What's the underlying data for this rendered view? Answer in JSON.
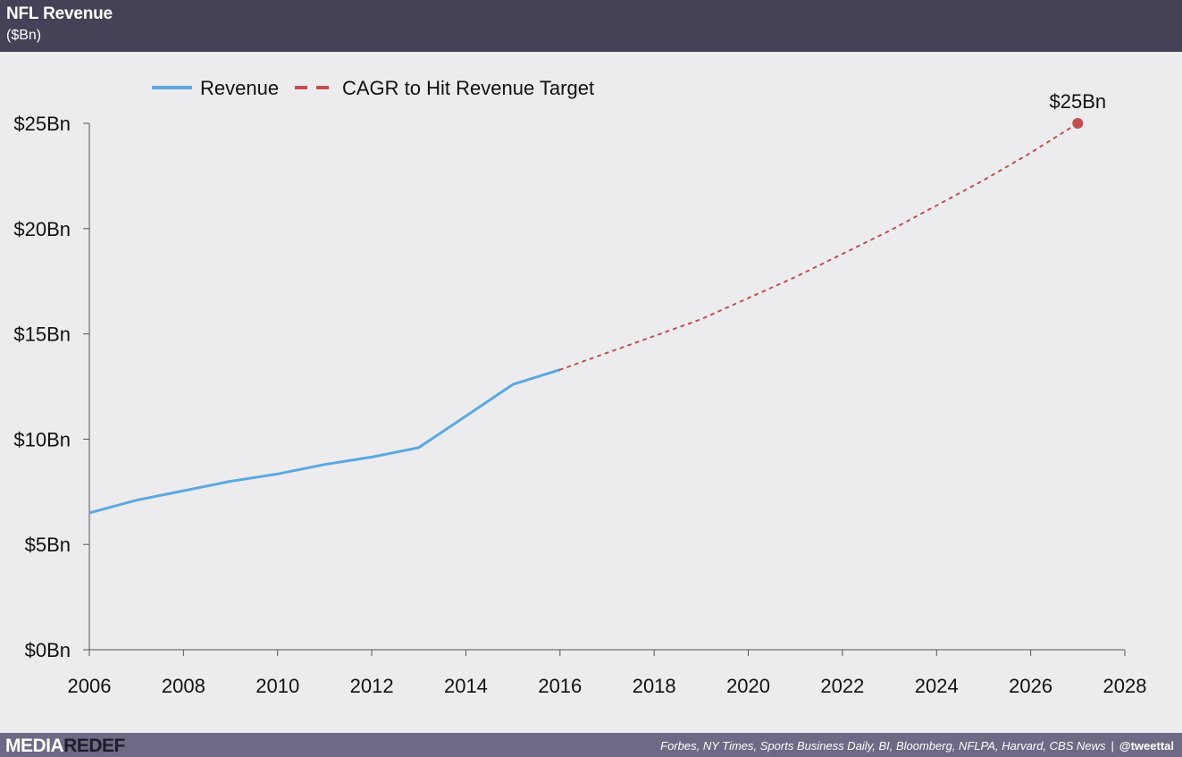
{
  "header": {
    "title": "NFL Revenue",
    "subtitle": "($Bn)"
  },
  "footer": {
    "brand_part1": "MEDIA",
    "brand_part2": "REDEF",
    "sources": "Forbes, NY Times, Sports Business Daily, BI, Bloomberg, NFLPA, Harvard, CBS News",
    "separator": "|",
    "handle": "@tweettal"
  },
  "colors": {
    "revenue": "#5aa8e0",
    "cagr": "#c0504d",
    "axis": "#555555",
    "text": "#111111"
  },
  "chart_data": {
    "type": "line",
    "title": "NFL Revenue",
    "subtitle": "($Bn)",
    "xlim": [
      2006,
      2028
    ],
    "ylim": [
      0,
      25
    ],
    "x_ticks": [
      "2006",
      "2008",
      "2010",
      "2012",
      "2014",
      "2016",
      "2018",
      "2020",
      "2022",
      "2024",
      "2026",
      "2028"
    ],
    "y_ticks": [
      "$0Bn",
      "$5Bn",
      "$10Bn",
      "$15Bn",
      "$20Bn",
      "$25Bn"
    ],
    "y_tick_values": [
      0,
      5,
      10,
      15,
      20,
      25
    ],
    "x_tick_values": [
      2006,
      2008,
      2010,
      2012,
      2014,
      2016,
      2018,
      2020,
      2022,
      2024,
      2026,
      2028
    ],
    "legend_position": "top-left",
    "grid": false,
    "series": [
      {
        "name": "Revenue",
        "style": "solid",
        "x": [
          2006,
          2007,
          2008,
          2009,
          2010,
          2011,
          2012,
          2013,
          2014,
          2015,
          2016
        ],
        "y": [
          6.5,
          7.1,
          7.55,
          8.0,
          8.35,
          8.8,
          9.15,
          9.6,
          11.1,
          12.6,
          13.3
        ]
      },
      {
        "name": "CAGR to Hit Revenue Target",
        "style": "dotted",
        "x": [
          2016,
          2017,
          2018,
          2019,
          2020,
          2021,
          2022,
          2023,
          2024,
          2025,
          2026,
          2027
        ],
        "y": [
          13.3,
          14.1,
          14.9,
          15.7,
          16.7,
          17.7,
          18.8,
          19.9,
          21.1,
          22.3,
          23.6,
          25.0
        ]
      }
    ],
    "annotations": [
      {
        "text": "$25Bn",
        "x": 2027,
        "y": 25
      }
    ]
  }
}
